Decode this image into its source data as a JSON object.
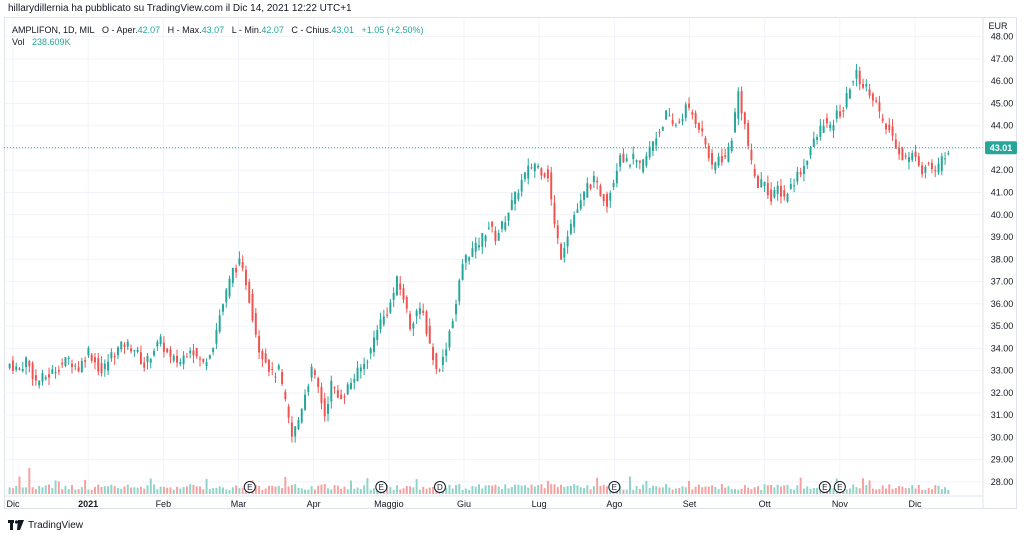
{
  "header": {
    "publish_text": "hillarydillernia ha pubblicato su TradingView.com il Dic 14, 2021 12:22 UTC+1"
  },
  "legend": {
    "symbol": "AMPLIFON, 1D, MIL",
    "open_label": "O - Aper.",
    "open_value": "42.07",
    "high_label": "H - Max.",
    "high_value": "43.07",
    "low_label": "L - Min.",
    "low_value": "42.07",
    "close_label": "C - Chius.",
    "close_value": "43.01",
    "change": "+1.05 (+2.50%)",
    "vol_label": "Vol",
    "vol_value": "238.609K"
  },
  "price_axis": {
    "currency": "EUR",
    "last_price_label": "43.01"
  },
  "footer": {
    "brand": "TradingView"
  },
  "colors": {
    "up": "#26a69a",
    "down": "#ef5350",
    "up_volume": "#8fd3c9",
    "down_volume": "#f5a19f",
    "grid": "#f0f3fa",
    "last_price_line": "#26a69a"
  },
  "chart_data": {
    "type": "candlestick",
    "x_tick_labels": [
      "Dic",
      "2021",
      "Feb",
      "Mar",
      "Apr",
      "Maggio",
      "Giu",
      "Lug",
      "Ago",
      "Set",
      "Ott",
      "Nov",
      "Dic"
    ],
    "y_tick_labels": [
      "28.00",
      "29.00",
      "30.00",
      "31.00",
      "32.00",
      "33.00",
      "34.00",
      "35.00",
      "36.00",
      "37.00",
      "38.00",
      "39.00",
      "40.00",
      "41.00",
      "42.00",
      "43.00",
      "44.00",
      "45.00",
      "46.00",
      "47.00",
      "48.00"
    ],
    "ylim": [
      27.5,
      48.3
    ],
    "last_price": 43.01,
    "earnings_markers": [
      {
        "label": "E",
        "month": "Mar"
      },
      {
        "label": "E",
        "month": "Maggio"
      },
      {
        "label": "D",
        "month": "Maggio"
      },
      {
        "label": "E",
        "month": "Ago"
      },
      {
        "label": "E",
        "month": "Ott"
      },
      {
        "label": "E",
        "month": "Nov"
      }
    ],
    "close_path": [
      [
        0,
        33.3
      ],
      [
        3,
        33.0
      ],
      [
        5,
        33.5
      ],
      [
        8,
        32.5
      ],
      [
        12,
        32.8
      ],
      [
        15,
        33.2
      ],
      [
        18,
        33.5
      ],
      [
        21,
        33.1
      ],
      [
        24,
        33.9
      ],
      [
        26,
        33.4
      ],
      [
        28,
        32.9
      ],
      [
        31,
        33.7
      ],
      [
        35,
        34.2
      ],
      [
        38,
        34.0
      ],
      [
        41,
        33.2
      ],
      [
        44,
        34.0
      ],
      [
        46,
        34.3
      ],
      [
        49,
        33.5
      ],
      [
        52,
        33.4
      ],
      [
        55,
        34.1
      ],
      [
        57,
        33.6
      ],
      [
        59,
        33.3
      ],
      [
        62,
        34.2
      ],
      [
        64,
        35.5
      ],
      [
        66,
        36.5
      ],
      [
        68,
        37.5
      ],
      [
        70,
        37.8
      ],
      [
        72,
        37.0
      ],
      [
        74,
        35.5
      ],
      [
        76,
        34.0
      ],
      [
        78,
        33.5
      ],
      [
        80,
        32.8
      ],
      [
        82,
        33.0
      ],
      [
        84,
        31.5
      ],
      [
        86,
        30.0
      ],
      [
        88,
        30.8
      ],
      [
        90,
        32.0
      ],
      [
        92,
        33.0
      ],
      [
        94,
        32.2
      ],
      [
        96,
        31.0
      ],
      [
        98,
        32.4
      ],
      [
        100,
        31.8
      ],
      [
        102,
        32.0
      ],
      [
        104,
        32.5
      ],
      [
        106,
        32.9
      ],
      [
        108,
        33.3
      ],
      [
        110,
        33.9
      ],
      [
        112,
        35.0
      ],
      [
        114,
        35.4
      ],
      [
        116,
        36.0
      ],
      [
        118,
        37.0
      ],
      [
        120,
        36.3
      ],
      [
        122,
        35.0
      ],
      [
        124,
        35.7
      ],
      [
        126,
        35.5
      ],
      [
        128,
        34.2
      ],
      [
        130,
        33.0
      ],
      [
        132,
        33.5
      ],
      [
        134,
        34.8
      ],
      [
        136,
        36.0
      ],
      [
        138,
        37.8
      ],
      [
        140,
        38.3
      ],
      [
        142,
        38.5
      ],
      [
        144,
        39.0
      ],
      [
        146,
        39.5
      ],
      [
        148,
        39.0
      ],
      [
        150,
        39.5
      ],
      [
        152,
        40.2
      ],
      [
        154,
        40.8
      ],
      [
        156,
        41.5
      ],
      [
        158,
        42.0
      ],
      [
        160,
        42.3
      ],
      [
        162,
        42.0
      ],
      [
        164,
        41.8
      ],
      [
        166,
        39.5
      ],
      [
        168,
        38.2
      ],
      [
        170,
        39.2
      ],
      [
        172,
        40.0
      ],
      [
        174,
        40.5
      ],
      [
        176,
        41.3
      ],
      [
        178,
        41.5
      ],
      [
        180,
        41.0
      ],
      [
        182,
        40.6
      ],
      [
        184,
        41.6
      ],
      [
        186,
        42.8
      ],
      [
        188,
        42.3
      ],
      [
        190,
        42.5
      ],
      [
        192,
        42.1
      ],
      [
        194,
        42.6
      ],
      [
        196,
        43.3
      ],
      [
        198,
        43.8
      ],
      [
        200,
        44.5
      ],
      [
        202,
        44.0
      ],
      [
        204,
        44.2
      ],
      [
        206,
        44.8
      ],
      [
        208,
        44.5
      ],
      [
        210,
        44.0
      ],
      [
        212,
        43.2
      ],
      [
        214,
        42.0
      ],
      [
        216,
        42.6
      ],
      [
        218,
        42.5
      ],
      [
        220,
        43.5
      ],
      [
        222,
        45.5
      ],
      [
        224,
        44.0
      ],
      [
        226,
        42.2
      ],
      [
        228,
        41.3
      ],
      [
        230,
        41.6
      ],
      [
        232,
        40.6
      ],
      [
        234,
        41.2
      ],
      [
        236,
        40.8
      ],
      [
        238,
        41.3
      ],
      [
        240,
        41.8
      ],
      [
        242,
        42.2
      ],
      [
        244,
        43.0
      ],
      [
        246,
        43.5
      ],
      [
        248,
        44.2
      ],
      [
        250,
        43.8
      ],
      [
        252,
        44.5
      ],
      [
        254,
        44.7
      ],
      [
        256,
        45.8
      ],
      [
        258,
        46.3
      ],
      [
        260,
        45.8
      ],
      [
        262,
        45.6
      ],
      [
        264,
        45.0
      ],
      [
        266,
        44.0
      ],
      [
        268,
        43.8
      ],
      [
        270,
        43.2
      ],
      [
        272,
        42.6
      ],
      [
        274,
        42.5
      ],
      [
        276,
        42.8
      ],
      [
        278,
        42.0
      ],
      [
        280,
        42.3
      ],
      [
        282,
        41.8
      ],
      [
        284,
        42.5
      ],
      [
        286,
        43.01
      ]
    ]
  }
}
